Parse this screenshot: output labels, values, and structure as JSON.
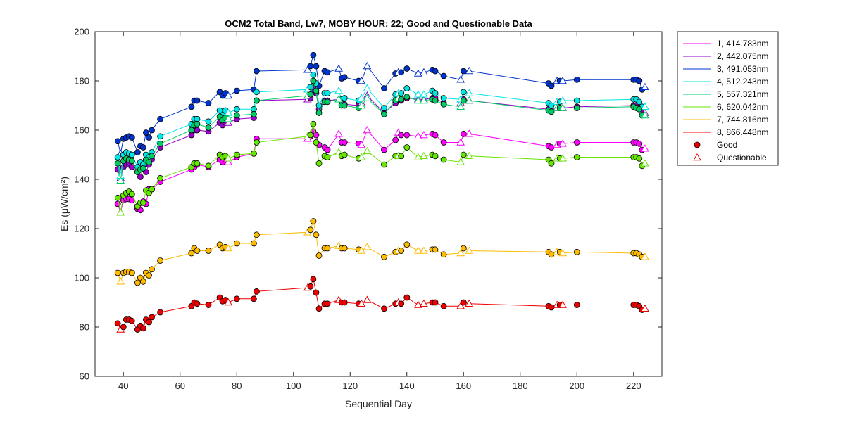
{
  "chart_data": {
    "type": "line",
    "title": "OCM2 Total Band,  Lw7, MOBY HOUR: 22;  Good and Questionable Data",
    "xlabel": "Sequential Day",
    "ylabel": "Es (μW/cm²)",
    "xlim": [
      30,
      230
    ],
    "ylim": [
      60,
      200
    ],
    "xticks": [
      40,
      60,
      80,
      100,
      120,
      140,
      160,
      180,
      200,
      220
    ],
    "yticks": [
      60,
      80,
      100,
      120,
      140,
      160,
      180,
      200
    ],
    "grid": false,
    "legend_position": "outside-right",
    "marker_legend": [
      {
        "label": "Good",
        "marker": "circle",
        "color": "#ee0000"
      },
      {
        "label": "Questionable",
        "marker": "triangle",
        "color": "#ee0000"
      }
    ],
    "x": [
      38,
      39,
      40,
      41,
      42,
      43,
      45,
      46,
      47,
      48,
      49,
      50,
      53,
      64,
      65,
      66,
      70,
      74,
      75,
      76,
      77,
      80,
      86,
      87,
      105,
      106,
      107,
      108,
      109,
      111,
      112,
      116,
      117,
      118,
      123,
      124,
      126,
      132,
      136,
      137,
      138,
      140,
      144,
      146,
      149,
      150,
      153,
      159,
      160,
      162,
      190,
      191,
      193,
      194,
      195,
      200,
      220,
      221,
      222,
      223,
      224
    ],
    "quality": [
      "G",
      "Q",
      "G",
      "G",
      "G",
      "G",
      "G",
      "G",
      "G",
      "G",
      "G",
      "G",
      "G",
      "G",
      "G",
      "G",
      "G",
      "G",
      "G",
      "G",
      "Q",
      "G",
      "G",
      "G",
      "Q",
      "G",
      "G",
      "G",
      "G",
      "G",
      "G",
      "Q",
      "G",
      "G",
      "G",
      "Q",
      "Q",
      "G",
      "G",
      "Q",
      "G",
      "G",
      "Q",
      "Q",
      "G",
      "G",
      "G",
      "Q",
      "G",
      "Q",
      "G",
      "G",
      "Q",
      "G",
      "Q",
      "G",
      "G",
      "G",
      "G",
      "G",
      "Q"
    ],
    "series": [
      {
        "name": "1, 414.783nm",
        "color": "#ff00ff",
        "values": [
          130,
          126.5,
          131.5,
          132,
          132,
          131.5,
          128,
          127.5,
          131,
          130,
          136,
          136,
          139,
          144,
          145,
          146,
          145,
          148,
          147,
          148,
          147,
          149,
          150.5,
          156.5,
          156.5,
          157.5,
          159.5,
          158,
          154,
          153,
          152,
          158.5,
          155,
          155,
          154.5,
          154,
          160,
          152,
          156,
          159,
          158,
          158,
          157.5,
          158,
          158.5,
          158,
          155,
          155,
          158.5,
          158.5,
          153.5,
          153,
          154,
          154.5,
          154.5,
          155,
          155,
          155,
          154.5,
          152,
          152.5
        ]
      },
      {
        "name": "2, 442.075nm",
        "color": "#9900cc",
        "values": [
          144,
          140.5,
          145,
          146,
          146,
          145,
          143,
          141,
          144.5,
          143,
          146,
          148,
          153,
          158,
          160,
          160,
          159.5,
          163,
          162,
          163,
          163,
          164.5,
          165,
          172,
          172.5,
          173,
          177,
          175,
          168.5,
          172,
          172,
          172.5,
          170.5,
          170.5,
          170,
          171,
          174,
          167,
          171,
          173,
          172,
          173,
          172.5,
          172.5,
          173,
          173,
          171,
          171,
          172.5,
          172,
          168.5,
          168,
          169,
          169,
          169,
          169.5,
          170,
          170,
          169,
          168.5,
          167
        ]
      },
      {
        "name": "3, 491.053nm",
        "color": "#0033cc",
        "values": [
          155.5,
          150.5,
          156.5,
          157,
          157.5,
          157,
          151,
          153.5,
          153,
          159,
          157,
          160,
          164.5,
          169.5,
          172,
          172,
          171,
          175.5,
          174,
          175,
          174,
          176,
          176.5,
          184,
          184.5,
          186,
          190.5,
          186,
          178,
          184,
          183.5,
          185,
          181,
          181.5,
          180,
          180,
          186,
          177,
          183,
          183.5,
          183.5,
          185,
          183,
          183.5,
          184.5,
          184,
          182,
          180.5,
          184,
          184,
          179,
          178,
          180,
          180,
          180,
          180.5,
          180.5,
          180.5,
          180,
          176.5,
          177.5
        ]
      },
      {
        "name": "4, 512.243nm",
        "color": "#00e5e5",
        "values": [
          149,
          141.5,
          150,
          151,
          150.5,
          150,
          145,
          147,
          146,
          150,
          149,
          151,
          157.5,
          162.5,
          164.5,
          164.5,
          163.5,
          168,
          166,
          168,
          167,
          168.5,
          168.5,
          175.5,
          176.5,
          177.5,
          182.5,
          179,
          170,
          175,
          175,
          176,
          172.5,
          173,
          172,
          173,
          177,
          169,
          174.5,
          175,
          175,
          177,
          174.5,
          174.5,
          176,
          175,
          173,
          172.5,
          175.5,
          175,
          171,
          170,
          171.5,
          171.5,
          172,
          172,
          172.5,
          172.5,
          171.5,
          169.5,
          169.5
        ]
      },
      {
        "name": "5, 557.321nm",
        "color": "#00cc66",
        "values": [
          146.5,
          139.5,
          147.5,
          148.5,
          148,
          147.5,
          143,
          144,
          144.5,
          148,
          147,
          149.5,
          154.5,
          160,
          162,
          162.5,
          161,
          165.5,
          164,
          165,
          164.5,
          166,
          166.5,
          172,
          174,
          174.5,
          180,
          176,
          167,
          171.5,
          171.5,
          172.5,
          170,
          170,
          169,
          170,
          173,
          166.5,
          172,
          173,
          172.5,
          173.5,
          172,
          172,
          172.5,
          172,
          170.5,
          169.5,
          172,
          172,
          168,
          167.5,
          169,
          169,
          169,
          169,
          169.5,
          169,
          168.5,
          166,
          166
        ]
      },
      {
        "name": "6, 620.042nm",
        "color": "#66e600",
        "values": [
          132.5,
          126.5,
          133.5,
          134.5,
          135,
          134,
          129,
          130.5,
          130.5,
          135.5,
          134.5,
          136,
          140.5,
          145,
          146.5,
          146.5,
          145.5,
          150,
          149,
          149.5,
          148.5,
          150,
          150.5,
          155,
          157.5,
          158,
          162.5,
          155,
          146.5,
          149.5,
          149,
          151,
          149.5,
          150,
          148.5,
          149,
          151.5,
          146,
          149.5,
          149.5,
          149.5,
          153,
          149,
          149.5,
          150,
          149.5,
          148,
          147,
          150,
          149.5,
          148,
          146.5,
          148.5,
          148.5,
          148.5,
          149,
          149,
          149,
          148.5,
          145.5,
          146.5
        ]
      },
      {
        "name": "7, 744.816nm",
        "color": "#ffbb00",
        "values": [
          102,
          98.5,
          102,
          102.5,
          102.5,
          102,
          98,
          100,
          98.5,
          102,
          101,
          103.5,
          107,
          110,
          112,
          111,
          111,
          113.5,
          112,
          112.5,
          112,
          114,
          114,
          117.5,
          118.5,
          119.5,
          123,
          117.5,
          109,
          112,
          112,
          113,
          112,
          112,
          111.5,
          111,
          112.5,
          108.5,
          110.5,
          111,
          111,
          113.5,
          111,
          111,
          111.5,
          111.5,
          109.5,
          110,
          112,
          111,
          110.5,
          109.5,
          110.5,
          110.5,
          110,
          110.5,
          110,
          110,
          109.5,
          108.5,
          108.5
        ]
      },
      {
        "name": "8, 866.448nm",
        "color": "#ee0000",
        "values": [
          81.5,
          79,
          80,
          83,
          83,
          82.5,
          79,
          80.5,
          79.5,
          83,
          82,
          84,
          86,
          88.5,
          90,
          89.5,
          89,
          92,
          90.5,
          91,
          90,
          91.5,
          91.5,
          94.5,
          96,
          96.5,
          99.5,
          94,
          87.5,
          89.5,
          89.5,
          91,
          90,
          90,
          89.5,
          89.5,
          91,
          87.5,
          89.5,
          90,
          89.5,
          92,
          89,
          89.5,
          90,
          90,
          88.5,
          88.5,
          90,
          89.5,
          88.5,
          88,
          89,
          89,
          89,
          89,
          89,
          89,
          88.5,
          87,
          87.5
        ]
      }
    ]
  }
}
